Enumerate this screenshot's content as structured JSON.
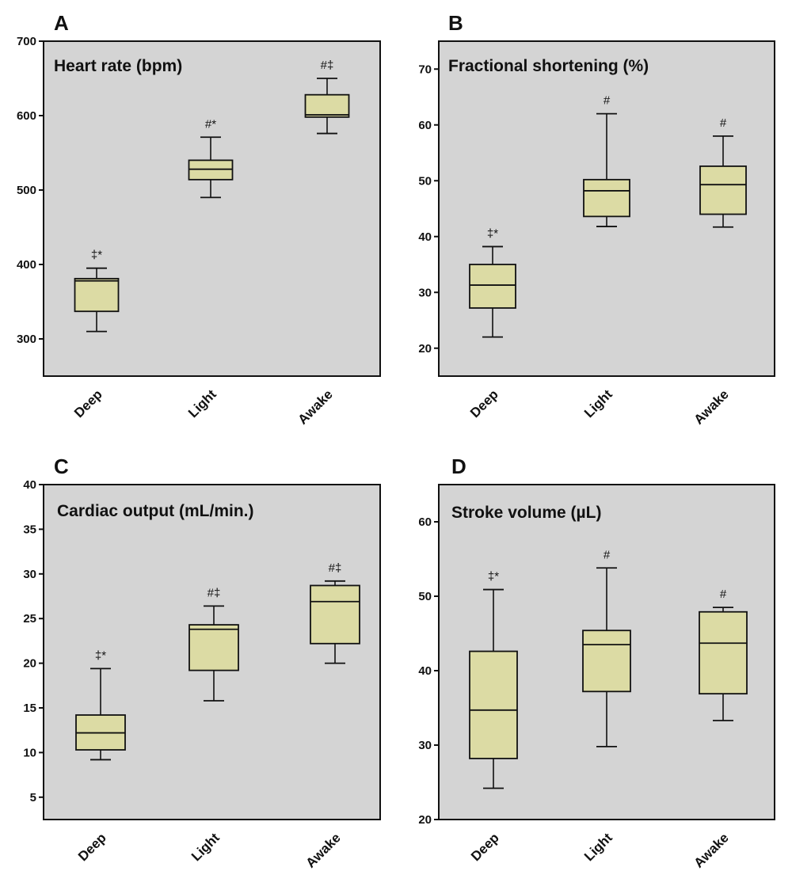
{
  "chart_data": [
    {
      "type": "boxplot",
      "panel": "A",
      "title": "Heart rate (bpm)",
      "categories": [
        "Deep",
        "Light",
        "Awake"
      ],
      "ylim": [
        250,
        700
      ],
      "yticks": [
        300,
        400,
        500,
        600,
        700
      ],
      "boxes": [
        {
          "min": 310,
          "q1": 337,
          "median": 378,
          "q3": 381,
          "max": 395,
          "annotation": "‡*"
        },
        {
          "min": 490,
          "q1": 514,
          "median": 528,
          "q3": 540,
          "max": 571,
          "annotation": "#*"
        },
        {
          "min": 576,
          "q1": 598,
          "median": 601,
          "q3": 628,
          "max": 650,
          "annotation": "#‡"
        }
      ]
    },
    {
      "type": "boxplot",
      "panel": "B",
      "title": "Fractional shortening (%)",
      "categories": [
        "Deep",
        "Light",
        "Awake"
      ],
      "ylim": [
        15,
        75
      ],
      "yticks": [
        20,
        30,
        40,
        50,
        60,
        70
      ],
      "boxes": [
        {
          "min": 22,
          "q1": 27.2,
          "median": 31.3,
          "q3": 35,
          "max": 38.2,
          "annotation": "‡*"
        },
        {
          "min": 41.8,
          "q1": 43.6,
          "median": 48.2,
          "q3": 50.2,
          "max": 62,
          "annotation": "#"
        },
        {
          "min": 41.7,
          "q1": 44,
          "median": 49.3,
          "q3": 52.6,
          "max": 58,
          "annotation": "#"
        }
      ]
    },
    {
      "type": "boxplot",
      "panel": "C",
      "title": "Cardiac output (mL/min.)",
      "categories": [
        "Deep",
        "Light",
        "Awake"
      ],
      "ylim": [
        2.5,
        40
      ],
      "yticks": [
        5,
        10,
        15,
        20,
        25,
        30,
        35,
        40
      ],
      "boxes": [
        {
          "min": 9.2,
          "q1": 10.3,
          "median": 12.2,
          "q3": 14.2,
          "max": 19.4,
          "annotation": "‡*"
        },
        {
          "min": 15.8,
          "q1": 19.2,
          "median": 23.8,
          "q3": 24.3,
          "max": 26.4,
          "annotation": "#‡"
        },
        {
          "min": 20,
          "q1": 22.2,
          "median": 26.9,
          "q3": 28.7,
          "max": 29.2,
          "annotation": "#‡"
        }
      ]
    },
    {
      "type": "boxplot",
      "panel": "D",
      "title": "Stroke volume (µL)",
      "categories": [
        "Deep",
        "Light",
        "Awake"
      ],
      "ylim": [
        20,
        65
      ],
      "yticks": [
        20,
        30,
        40,
        50,
        60
      ],
      "boxes": [
        {
          "min": 24.2,
          "q1": 28.2,
          "median": 34.7,
          "q3": 42.6,
          "max": 50.9,
          "annotation": "‡*"
        },
        {
          "min": 29.8,
          "q1": 37.2,
          "median": 43.5,
          "q3": 45.4,
          "max": 53.8,
          "annotation": "#"
        },
        {
          "min": 33.3,
          "q1": 36.9,
          "median": 43.7,
          "q3": 47.9,
          "max": 48.5,
          "annotation": "#"
        }
      ]
    }
  ],
  "colors": {
    "plot_background": "#d4d4d4",
    "box_fill": "#dcdba4",
    "stroke": "#111111"
  }
}
